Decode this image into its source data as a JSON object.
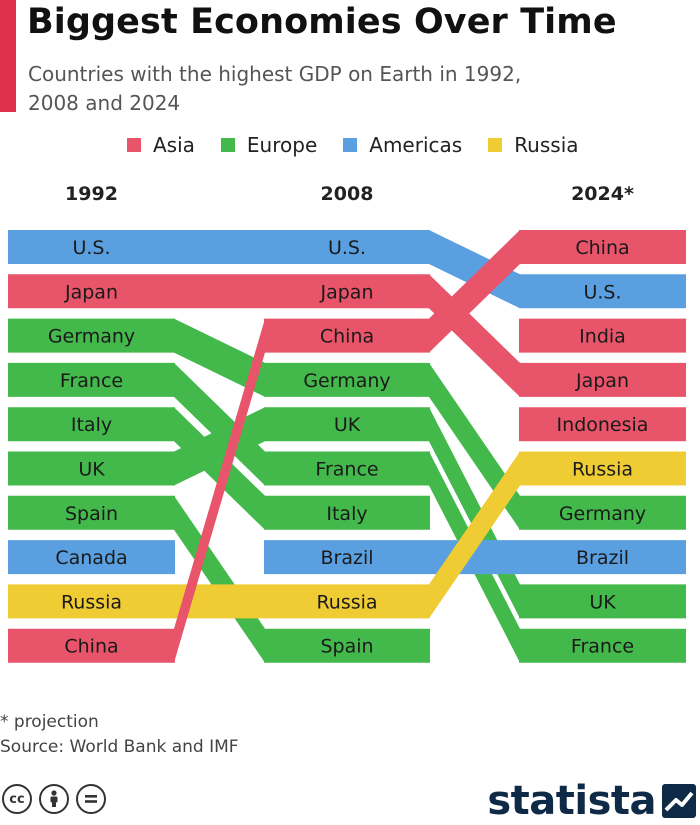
{
  "header": {
    "title": "Biggest Economies Over Time",
    "subtitle": "Countries with the highest GDP on Earth in 1992, 2008 and 2024",
    "accent_color": "#e0314a"
  },
  "legend": [
    {
      "label": "Asia",
      "color": "#e8546a"
    },
    {
      "label": "Europe",
      "color": "#43b84b"
    },
    {
      "label": "Americas",
      "color": "#5aa0e0"
    },
    {
      "label": "Russia",
      "color": "#f0cc34"
    }
  ],
  "chart_data": {
    "type": "table",
    "columns": [
      "1992",
      "2008",
      "2024*"
    ],
    "rankings": [
      {
        "year": "1992",
        "countries": [
          "U.S.",
          "Japan",
          "Germany",
          "France",
          "Italy",
          "UK",
          "Spain",
          "Canada",
          "Russia",
          "China"
        ]
      },
      {
        "year": "2008",
        "countries": [
          "U.S.",
          "Japan",
          "China",
          "Germany",
          "UK",
          "France",
          "Italy",
          "Brazil",
          "Russia",
          "Spain"
        ]
      },
      {
        "year": "2024*",
        "countries": [
          "China",
          "U.S.",
          "India",
          "Japan",
          "Indonesia",
          "Russia",
          "Germany",
          "Brazil",
          "UK",
          "France"
        ]
      }
    ],
    "regions": {
      "U.S.": "Americas",
      "Canada": "Americas",
      "Brazil": "Americas",
      "Japan": "Asia",
      "China": "Asia",
      "India": "Asia",
      "Indonesia": "Asia",
      "Germany": "Europe",
      "France": "Europe",
      "Italy": "Europe",
      "UK": "Europe",
      "Spain": "Europe",
      "Russia": "Russia"
    }
  },
  "footer": {
    "footnote": "* projection",
    "source": "Source: World Bank and IMF",
    "brand": "statista",
    "brand_color": "#0f2a47",
    "license_icons": [
      "cc",
      "by",
      "nd"
    ]
  }
}
